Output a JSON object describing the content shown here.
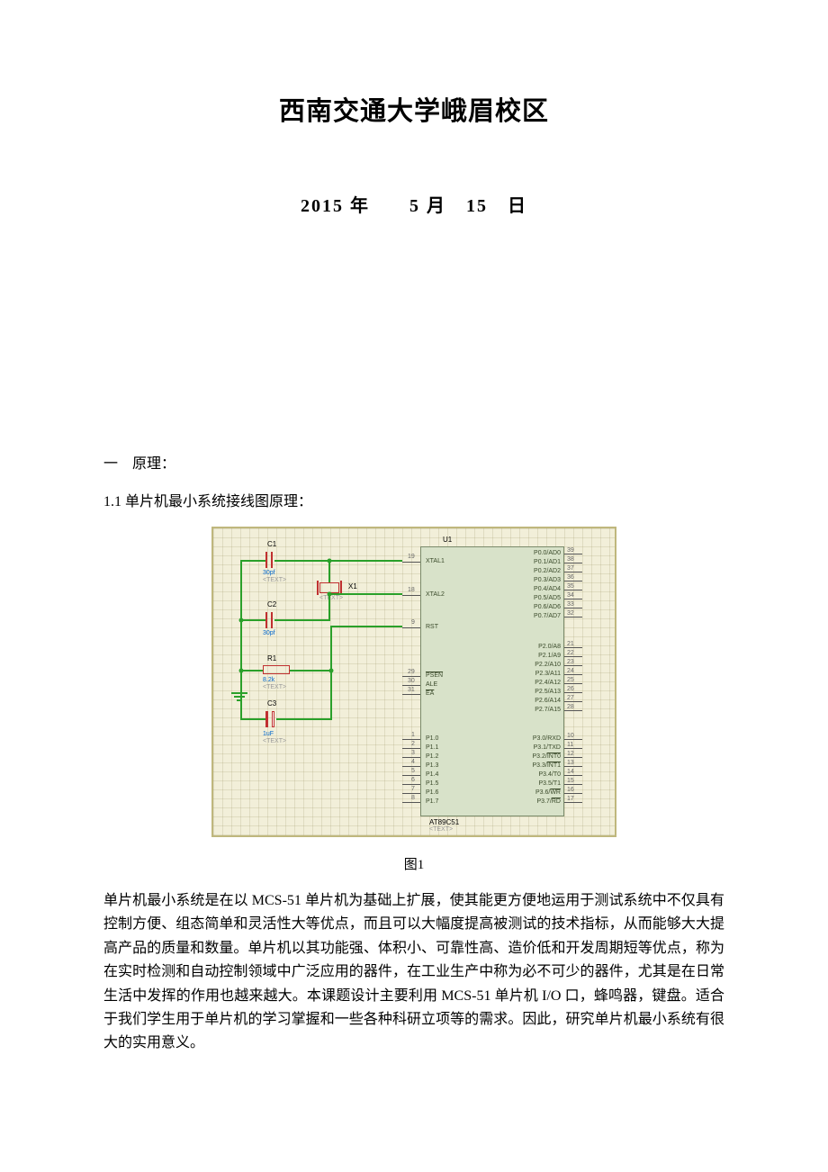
{
  "title": "西南交通大学峨眉校区",
  "date_line": "2015 年  5 月 15 日",
  "section1": {
    "heading": "一 原理：",
    "sub1": "1.1 单片机最小系统接线图原理："
  },
  "figure": {
    "caption": "图1",
    "bg_color": "#f2efd9",
    "border_color": "#bfb77d",
    "grid_color": "rgba(140,130,80,0.18)",
    "wire_color": "#2aa02a",
    "component_outline": "#c03030",
    "chip_fill": "#d8e2c9",
    "chip_border": "#7a8a6a",
    "label_color": "#3a4a2a",
    "text_mark_color": "#999999",
    "value_color": "#0066cc",
    "chip": {
      "ref": "U1",
      "part": "AT89C51",
      "text_mark": "<TEXT>",
      "left_pins": [
        {
          "num": "19",
          "name": "XTAL1"
        },
        {
          "num": "18",
          "name": "XTAL2"
        },
        {
          "num": "9",
          "name": "RST"
        },
        {
          "num": "29",
          "name": "PSEN",
          "bar": true
        },
        {
          "num": "30",
          "name": "ALE"
        },
        {
          "num": "31",
          "name": "EA",
          "bar": true
        },
        {
          "num": "1",
          "name": "P1.0"
        },
        {
          "num": "2",
          "name": "P1.1"
        },
        {
          "num": "3",
          "name": "P1.2"
        },
        {
          "num": "4",
          "name": "P1.3"
        },
        {
          "num": "5",
          "name": "P1.4"
        },
        {
          "num": "6",
          "name": "P1.5"
        },
        {
          "num": "7",
          "name": "P1.6"
        },
        {
          "num": "8",
          "name": "P1.7"
        }
      ],
      "right_pins_p0": [
        {
          "num": "39",
          "name": "P0.0/AD0"
        },
        {
          "num": "38",
          "name": "P0.1/AD1"
        },
        {
          "num": "37",
          "name": "P0.2/AD2"
        },
        {
          "num": "36",
          "name": "P0.3/AD3"
        },
        {
          "num": "35",
          "name": "P0.4/AD4"
        },
        {
          "num": "34",
          "name": "P0.5/AD5"
        },
        {
          "num": "33",
          "name": "P0.6/AD6"
        },
        {
          "num": "32",
          "name": "P0.7/AD7"
        }
      ],
      "right_pins_p2": [
        {
          "num": "21",
          "name": "P2.0/A8"
        },
        {
          "num": "22",
          "name": "P2.1/A9"
        },
        {
          "num": "23",
          "name": "P2.2/A10"
        },
        {
          "num": "24",
          "name": "P2.3/A11"
        },
        {
          "num": "25",
          "name": "P2.4/A12"
        },
        {
          "num": "26",
          "name": "P2.5/A13"
        },
        {
          "num": "27",
          "name": "P2.6/A14"
        },
        {
          "num": "28",
          "name": "P2.7/A15"
        }
      ],
      "right_pins_p3": [
        {
          "num": "10",
          "name": "P3.0/RXD"
        },
        {
          "num": "11",
          "name": "P3.1/TXD"
        },
        {
          "num": "12",
          "name": "P3.2/INT0",
          "bar_part": "INT0"
        },
        {
          "num": "13",
          "name": "P3.3/INT1",
          "bar_part": "INT1"
        },
        {
          "num": "14",
          "name": "P3.4/T0"
        },
        {
          "num": "15",
          "name": "P3.5/T1"
        },
        {
          "num": "16",
          "name": "P3.6/WR",
          "bar_part": "WR"
        },
        {
          "num": "17",
          "name": "P3.7/RD",
          "bar_part": "RD"
        }
      ]
    },
    "components": {
      "C1": {
        "ref": "C1",
        "val": "30pf",
        "text": "<TEXT>"
      },
      "C2": {
        "ref": "C2",
        "val": "30pf",
        "text": "<TEXT>"
      },
      "C3": {
        "ref": "C3",
        "val": "1uF",
        "text": "<TEXT>"
      },
      "R1": {
        "ref": "R1",
        "val": "8.2k",
        "text": "<TEXT>"
      },
      "X1": {
        "ref": "X1",
        "text": "<TEXT>"
      }
    }
  },
  "body_para": "单片机最小系统是在以 MCS-51 单片机为基础上扩展，使其能更方便地运用于测试系统中不仅具有控制方便、组态简单和灵活性大等优点，而且可以大幅度提高被测试的技术指标，从而能够大大提高产品的质量和数量。单片机以其功能强、体积小、可靠性高、造价低和开发周期短等优点，称为在实时检测和自动控制领域中广泛应用的器件，在工业生产中称为必不可少的器件，尤其是在日常生活中发挥的作用也越来越大。本课题设计主要利用 MCS-51 单片机 I/O 口，蜂鸣器，键盘。适合于我们学生用于单片机的学习掌握和一些各种科研立项等的需求。因此，研究单片机最小系统有很大的实用意义。"
}
